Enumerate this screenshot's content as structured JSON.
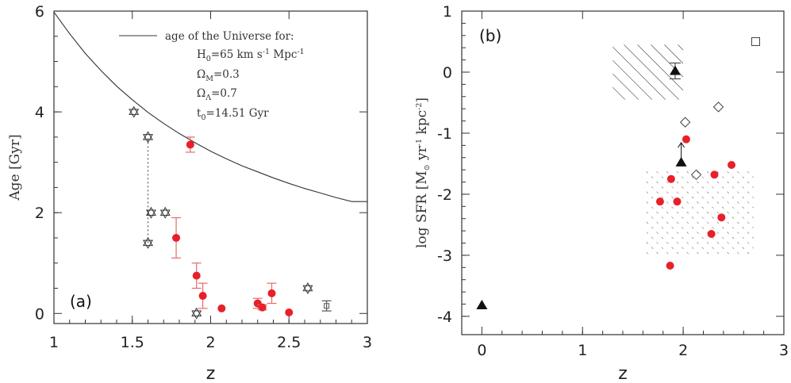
{
  "chart_data": [
    {
      "type": "scatter",
      "panel_label": "(a)",
      "xlabel": "z",
      "ylabel": "Age [Gyr]",
      "xlim": [
        1,
        3
      ],
      "ylim": [
        -0.2,
        6
      ],
      "x_ticks": [
        1,
        1.5,
        2,
        2.5,
        3
      ],
      "x_tick_labels": [
        "1",
        "1.5",
        "2",
        "2.5",
        "3"
      ],
      "y_ticks": [
        0,
        2,
        4,
        6
      ],
      "y_tick_labels": [
        "0",
        "2",
        "4",
        "6"
      ],
      "legend": {
        "line_label": "age of the Universe for:",
        "params": [
          "H",
          "0",
          "=65  km s",
          "-1",
          " Mpc",
          "-1"
        ],
        "om": [
          "Ω",
          "M",
          "=0.3"
        ],
        "ol": [
          "Ω",
          "Λ",
          "=0.7"
        ],
        "t0": [
          "t",
          "0",
          "=14.51 Gyr"
        ]
      },
      "universe_age_curve": {
        "H0": 65,
        "Omega_M": 0.3,
        "Omega_L": 0.7,
        "z": [
          1.0,
          1.1,
          1.2,
          1.3,
          1.4,
          1.5,
          1.6,
          1.7,
          1.8,
          1.9,
          2.0,
          2.1,
          2.2,
          2.3,
          2.4,
          2.5,
          2.6,
          2.7,
          2.8,
          2.9,
          3.0
        ],
        "age": [
          5.98,
          5.55,
          5.16,
          4.82,
          4.51,
          4.24,
          3.99,
          3.77,
          3.57,
          3.39,
          3.22,
          3.07,
          2.93,
          2.81,
          2.69,
          2.58,
          2.48,
          2.39,
          2.3,
          2.22,
          2.31
        ]
      },
      "red_points": [
        {
          "z": 1.87,
          "age": 3.35,
          "err": 0.15
        },
        {
          "z": 1.78,
          "age": 1.5,
          "err": 0.4
        },
        {
          "z": 1.91,
          "age": 0.75,
          "err": 0.25
        },
        {
          "z": 1.95,
          "age": 0.35,
          "err": 0.25
        },
        {
          "z": 2.07,
          "age": 0.1,
          "err": 0.03
        },
        {
          "z": 2.3,
          "age": 0.2,
          "err": 0.1
        },
        {
          "z": 2.33,
          "age": 0.12,
          "err": 0.05
        },
        {
          "z": 2.39,
          "age": 0.4,
          "err": 0.2
        },
        {
          "z": 2.5,
          "age": 0.02,
          "err": 0.0
        }
      ],
      "star_points": [
        {
          "z": 1.51,
          "age": 4.0
        },
        {
          "z": 1.6,
          "age": 3.5
        },
        {
          "z": 1.62,
          "age": 2.0
        },
        {
          "z": 1.71,
          "age": 2.0
        },
        {
          "z": 1.6,
          "age": 1.4
        },
        {
          "z": 1.91,
          "age": 0.0
        },
        {
          "z": 2.62,
          "age": 0.5
        }
      ],
      "dotted_segment": {
        "z": 1.6,
        "age_from": 1.4,
        "age_to": 3.5
      },
      "gray_errbar": {
        "z": 2.74,
        "age": 0.15,
        "err": 0.1
      }
    },
    {
      "type": "scatter",
      "panel_label": "(b)",
      "xlabel": "z",
      "ylabel": [
        "log SFR [M",
        "⊙",
        " yr",
        "-1",
        " kpc",
        "-2",
        "]"
      ],
      "xlim": [
        -0.2,
        3
      ],
      "ylim": [
        -4.3,
        1
      ],
      "x_ticks": [
        0,
        1,
        2,
        3
      ],
      "x_tick_labels": [
        "0",
        "1",
        "2",
        "3"
      ],
      "y_ticks": [
        1,
        0,
        -1,
        -2,
        -3,
        -4
      ],
      "y_tick_labels": [
        "1",
        "0",
        "-1",
        "-2",
        "-3",
        "-4"
      ],
      "hatched_region": {
        "x": [
          1.3,
          2.0
        ],
        "y": [
          -0.45,
          0.45
        ]
      },
      "dotted_region": {
        "x": [
          1.6,
          2.7
        ],
        "y": [
          -3.0,
          -1.6
        ]
      },
      "red_points": [
        {
          "z": 2.03,
          "sfr": -1.1
        },
        {
          "z": 2.48,
          "sfr": -1.52
        },
        {
          "z": 2.31,
          "sfr": -1.68
        },
        {
          "z": 1.88,
          "sfr": -1.75
        },
        {
          "z": 1.77,
          "sfr": -2.12
        },
        {
          "z": 1.94,
          "sfr": -2.12
        },
        {
          "z": 2.38,
          "sfr": -2.38
        },
        {
          "z": 2.28,
          "sfr": -2.65
        },
        {
          "z": 1.87,
          "sfr": -3.17
        }
      ],
      "triangles": [
        {
          "z": 1.92,
          "sfr": 0.02,
          "err": 0.13
        },
        {
          "z": 1.98,
          "sfr": -1.48,
          "arrow_up": true
        },
        {
          "z": 0.0,
          "sfr": -3.82
        }
      ],
      "diamonds": [
        {
          "z": 2.02,
          "sfr": -0.82
        },
        {
          "z": 2.35,
          "sfr": -0.57
        },
        {
          "z": 2.13,
          "sfr": -1.68
        }
      ],
      "square": {
        "z": 2.72,
        "sfr": 0.5
      }
    }
  ]
}
